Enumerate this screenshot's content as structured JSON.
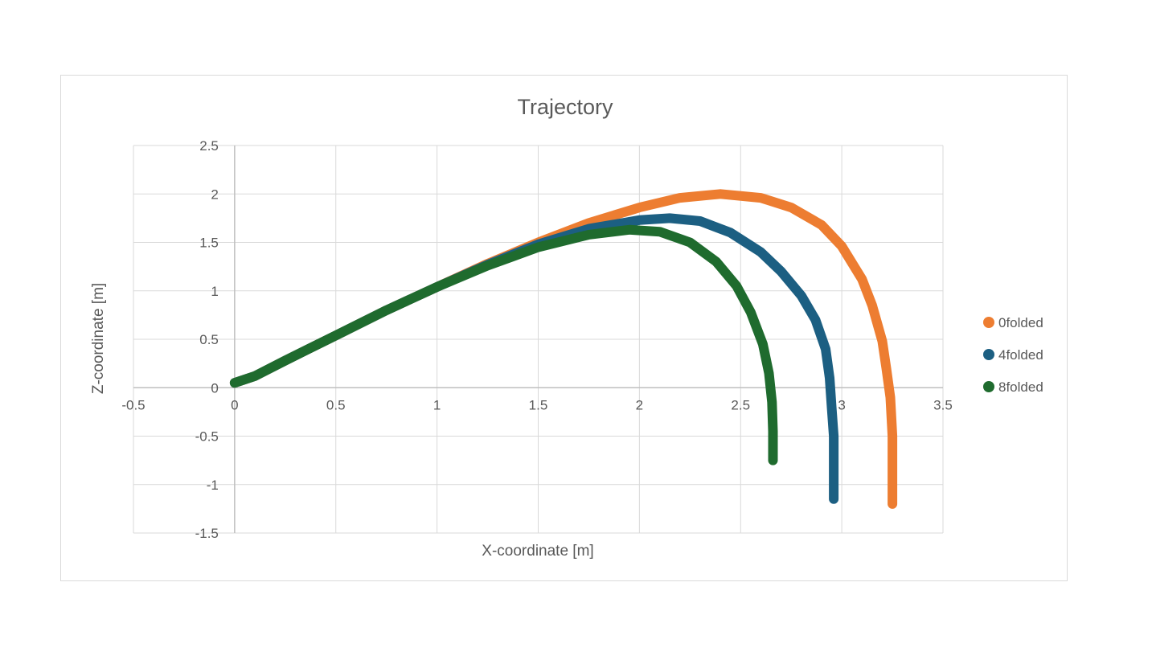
{
  "chart_data": {
    "type": "scatter",
    "title": "Trajectory",
    "xlabel": "X-coordinate [m]",
    "ylabel": "Z-coordinate [m]",
    "xlim": [
      -0.5,
      3.5
    ],
    "ylim": [
      -1.5,
      2.5
    ],
    "xticks": [
      -0.5,
      0,
      0.5,
      1,
      1.5,
      2,
      2.5,
      3,
      3.5
    ],
    "yticks": [
      -1.5,
      -1,
      -0.5,
      0,
      0.5,
      1,
      1.5,
      2,
      2.5
    ],
    "xtick_labels": [
      "-0.5",
      "0",
      "0.5",
      "1",
      "1.5",
      "2",
      "2.5",
      "3",
      "3.5"
    ],
    "ytick_labels": [
      "-1.5",
      "-1",
      "-0.5",
      "0",
      "0.5",
      "1",
      "1.5",
      "2",
      "2.5"
    ],
    "grid": true,
    "legend_position": "right",
    "series": [
      {
        "name": "0folded",
        "color": "#ED7D31",
        "points": [
          [
            0,
            0.05
          ],
          [
            0.1,
            0.12
          ],
          [
            0.25,
            0.28
          ],
          [
            0.5,
            0.54
          ],
          [
            0.75,
            0.8
          ],
          [
            1.0,
            1.04
          ],
          [
            1.25,
            1.28
          ],
          [
            1.5,
            1.5
          ],
          [
            1.75,
            1.7
          ],
          [
            2.0,
            1.86
          ],
          [
            2.2,
            1.96
          ],
          [
            2.4,
            2.0
          ],
          [
            2.6,
            1.96
          ],
          [
            2.75,
            1.86
          ],
          [
            2.9,
            1.68
          ],
          [
            3.0,
            1.46
          ],
          [
            3.1,
            1.12
          ],
          [
            3.15,
            0.85
          ],
          [
            3.2,
            0.48
          ],
          [
            3.22,
            0.2
          ],
          [
            3.24,
            -0.1
          ],
          [
            3.25,
            -0.5
          ],
          [
            3.25,
            -0.9
          ],
          [
            3.25,
            -1.2
          ]
        ]
      },
      {
        "name": "4folded",
        "color": "#1C5F82",
        "points": [
          [
            0,
            0.05
          ],
          [
            0.1,
            0.12
          ],
          [
            0.25,
            0.28
          ],
          [
            0.5,
            0.54
          ],
          [
            0.75,
            0.8
          ],
          [
            1.0,
            1.04
          ],
          [
            1.25,
            1.27
          ],
          [
            1.5,
            1.48
          ],
          [
            1.75,
            1.64
          ],
          [
            2.0,
            1.73
          ],
          [
            2.15,
            1.75
          ],
          [
            2.3,
            1.72
          ],
          [
            2.45,
            1.6
          ],
          [
            2.6,
            1.4
          ],
          [
            2.7,
            1.2
          ],
          [
            2.8,
            0.95
          ],
          [
            2.87,
            0.7
          ],
          [
            2.92,
            0.4
          ],
          [
            2.94,
            0.1
          ],
          [
            2.95,
            -0.2
          ],
          [
            2.96,
            -0.5
          ],
          [
            2.96,
            -0.8
          ],
          [
            2.96,
            -1.15
          ]
        ]
      },
      {
        "name": "8folded",
        "color": "#1F6B2E",
        "points": [
          [
            0,
            0.05
          ],
          [
            0.1,
            0.12
          ],
          [
            0.25,
            0.28
          ],
          [
            0.5,
            0.54
          ],
          [
            0.75,
            0.8
          ],
          [
            1.0,
            1.04
          ],
          [
            1.25,
            1.26
          ],
          [
            1.5,
            1.45
          ],
          [
            1.75,
            1.58
          ],
          [
            1.95,
            1.63
          ],
          [
            2.1,
            1.61
          ],
          [
            2.25,
            1.5
          ],
          [
            2.38,
            1.3
          ],
          [
            2.48,
            1.05
          ],
          [
            2.55,
            0.78
          ],
          [
            2.61,
            0.45
          ],
          [
            2.64,
            0.15
          ],
          [
            2.655,
            -0.15
          ],
          [
            2.66,
            -0.45
          ],
          [
            2.66,
            -0.75
          ]
        ]
      }
    ]
  }
}
